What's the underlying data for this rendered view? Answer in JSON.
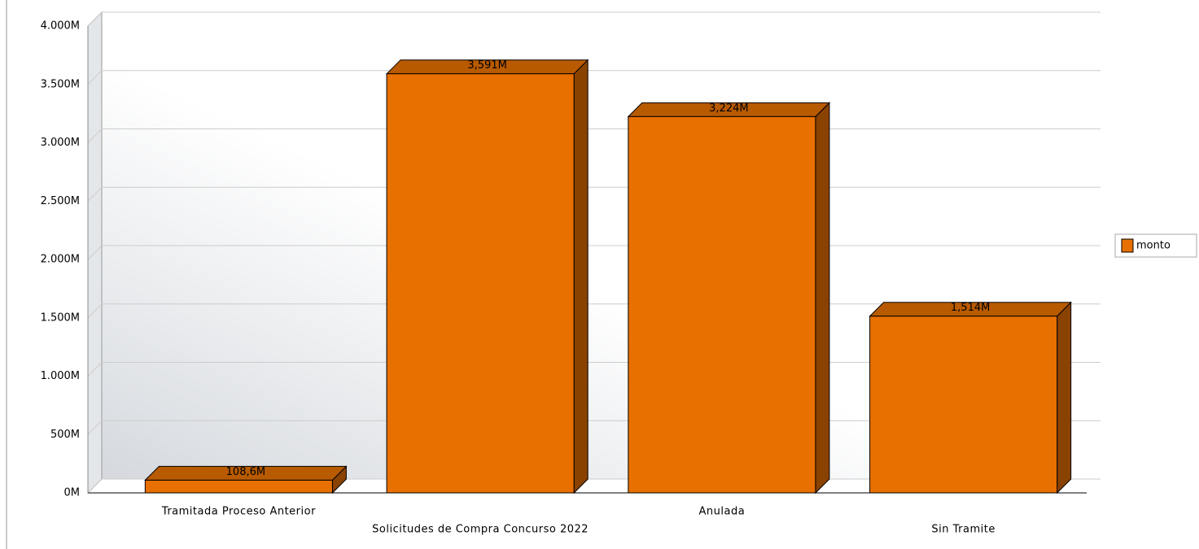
{
  "chart_data": {
    "type": "bar3d",
    "categories": [
      "Tramitada Proceso Anterior",
      "Solicitudes de Compra Concurso 2022",
      "Anulada",
      "Sin Tramite"
    ],
    "series": [
      {
        "name": "monto",
        "color": "#e87000",
        "values": [
          108.6,
          3591,
          3224,
          1514
        ],
        "value_labels": [
          "108,6M",
          "3,591M",
          "3,224M",
          "1,514M"
        ]
      }
    ],
    "ylim": [
      0,
      4000
    ],
    "yticks": [
      {
        "value": 0,
        "label": "0M"
      },
      {
        "value": 500,
        "label": "500M"
      },
      {
        "value": 1000,
        "label": "1.000M"
      },
      {
        "value": 1500,
        "label": "1.500M"
      },
      {
        "value": 2000,
        "label": "2.000M"
      },
      {
        "value": 2500,
        "label": "2.500M"
      },
      {
        "value": 3000,
        "label": "3.000M"
      },
      {
        "value": 3500,
        "label": "3.500M"
      },
      {
        "value": 4000,
        "label": "4.000M"
      }
    ],
    "grid": true,
    "legend": "right"
  }
}
